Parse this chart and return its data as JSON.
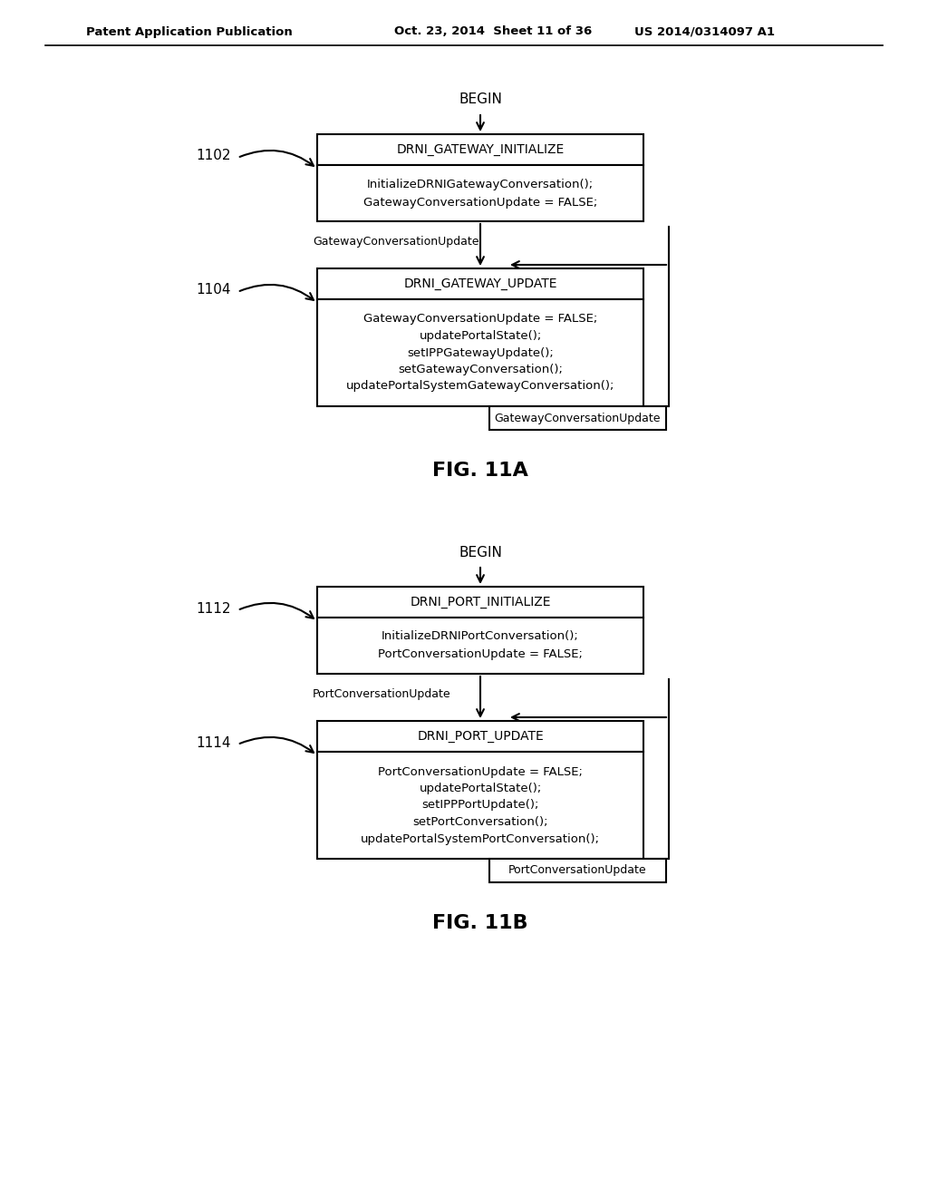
{
  "bg_color": "#ffffff",
  "header_text": "Patent Application Publication",
  "header_date": "Oct. 23, 2014  Sheet 11 of 36",
  "header_patent": "US 2014/0314097 A1",
  "fig_a_label": "FIG. 11A",
  "fig_b_label": "FIG. 11B",
  "diagram_a": {
    "begin_label": "BEGIN",
    "box1_title": "DRNI_GATEWAY_INITIALIZE",
    "box1_body_line1": "InitializeDRNIGatewayConversation();",
    "box1_body_line2": "GatewayConversationUpdate = FALSE;",
    "label1": "1102",
    "arrow1_label": "GatewayConversationUpdate",
    "box2_title": "DRNI_GATEWAY_UPDATE",
    "box2_body_line1": "GatewayConversationUpdate = FALSE;",
    "box2_body_line2": "updatePortalState();",
    "box2_body_line3": "setIPPGatewayUpdate();",
    "box2_body_line4": "setGatewayConversation();",
    "box2_body_line5": "updatePortalSystemGatewayConversation();",
    "label2": "1104",
    "arrow2_label": "GatewayConversationUpdate"
  },
  "diagram_b": {
    "begin_label": "BEGIN",
    "box1_title": "DRNI_PORT_INITIALIZE",
    "box1_body_line1": "InitializeDRNIPortConversation();",
    "box1_body_line2": "PortConversationUpdate = FALSE;",
    "label1": "1112",
    "arrow1_label": "PortConversationUpdate",
    "box2_title": "DRNI_PORT_UPDATE",
    "box2_body_line1": "PortConversationUpdate = FALSE;",
    "box2_body_line2": "updatePortalState();",
    "box2_body_line3": "setIPPPortUpdate();",
    "box2_body_line4": "setPortConversation();",
    "box2_body_line5": "updatePortalSystemPortConversation();",
    "label2": "1114",
    "arrow2_label": "PortConversationUpdate"
  }
}
